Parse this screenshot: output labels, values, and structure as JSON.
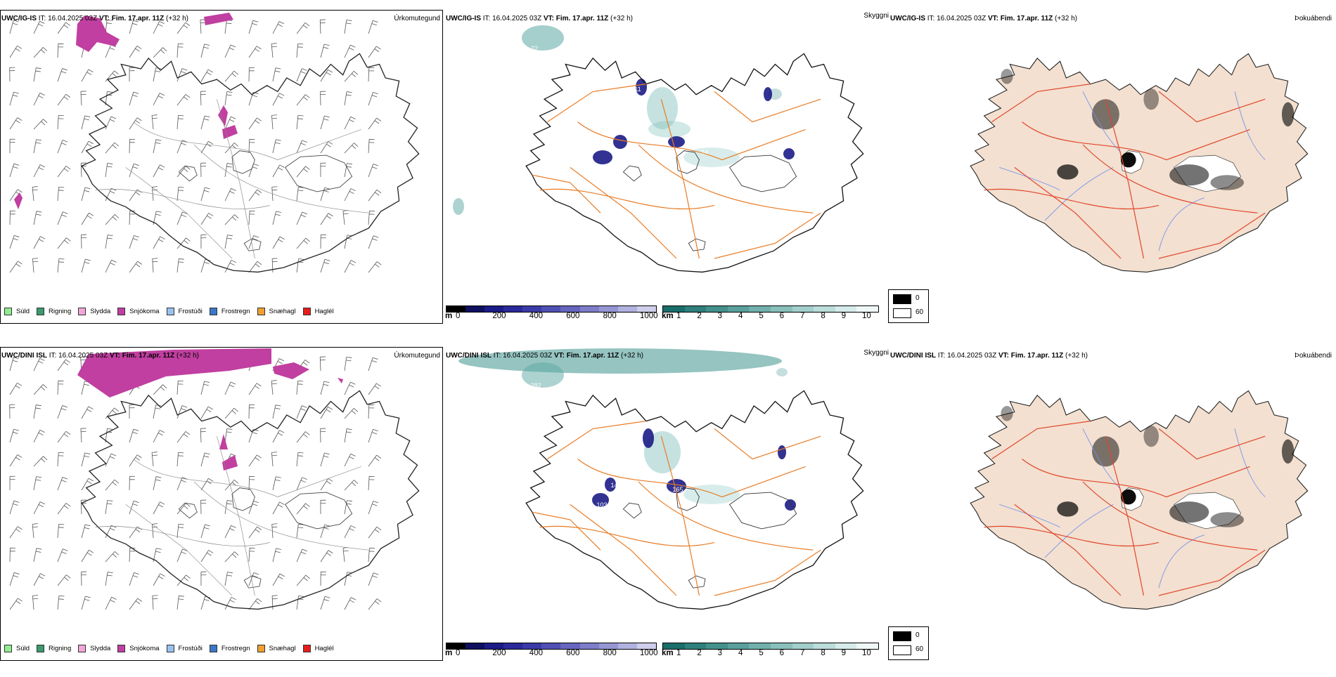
{
  "rows": [
    {
      "model": "UWC/IG-IS",
      "precip_numbers": [],
      "cloud_labels": [
        "22",
        "11",
        "120",
        "8",
        "34",
        "53",
        "12"
      ]
    },
    {
      "model": "UWC/DINI ISL",
      "cloud_labels": [
        "282",
        "140",
        "103",
        "165",
        "34",
        "19"
      ]
    }
  ],
  "header": {
    "it_label": "IT:",
    "it_value": "16.04.2025 03Z",
    "vt_label": "VT:",
    "vt_value": "Fim. 17.apr. 11Z",
    "lead": "(+32 h)"
  },
  "titles": {
    "precip": "Úrkomutegund",
    "cloud": "Skyggni",
    "vis": "Þokuábendi"
  },
  "precip_legend": [
    {
      "label": "Súld",
      "color": "#90ee90"
    },
    {
      "label": "Rigning",
      "color": "#3c9a6c"
    },
    {
      "label": "Slydda",
      "color": "#f4a6d7"
    },
    {
      "label": "Snjókoma",
      "color": "#c03fa0"
    },
    {
      "label": "Frostúði",
      "color": "#99c2f0"
    },
    {
      "label": "Frostregn",
      "color": "#3a78c9"
    },
    {
      "label": "Snæhagl",
      "color": "#f0a030"
    },
    {
      "label": "Haglél",
      "color": "#e81c1c"
    }
  ],
  "colorbar_m": {
    "unit": "m",
    "ticks": [
      "0",
      "200",
      "400",
      "600",
      "800",
      "1000"
    ],
    "colors": [
      "#000000",
      "#101060",
      "#1c1c86",
      "#2a2a9a",
      "#3b3ba8",
      "#5050b4",
      "#6666bf",
      "#7d7dc9",
      "#9696d4",
      "#b2b2e0",
      "#cfcfec"
    ]
  },
  "colorbar_km": {
    "unit": "km",
    "ticks": [
      "1",
      "2",
      "3",
      "4",
      "5",
      "6",
      "7",
      "8",
      "9",
      "10"
    ],
    "colors": [
      "#1a6e6a",
      "#2f807c",
      "#44908c",
      "#5aa09c",
      "#72b0ac",
      "#8ac0bc",
      "#a2cfcc",
      "#bcdeda",
      "#d6ecea",
      "#f0f8f7"
    ]
  },
  "vis_legend": {
    "black": "0",
    "white": "60"
  },
  "colors": {
    "land_vis": "#f3e0d0",
    "road": "#e87b24",
    "road_vis": "#e2452a",
    "river": "#6f8ff0"
  }
}
